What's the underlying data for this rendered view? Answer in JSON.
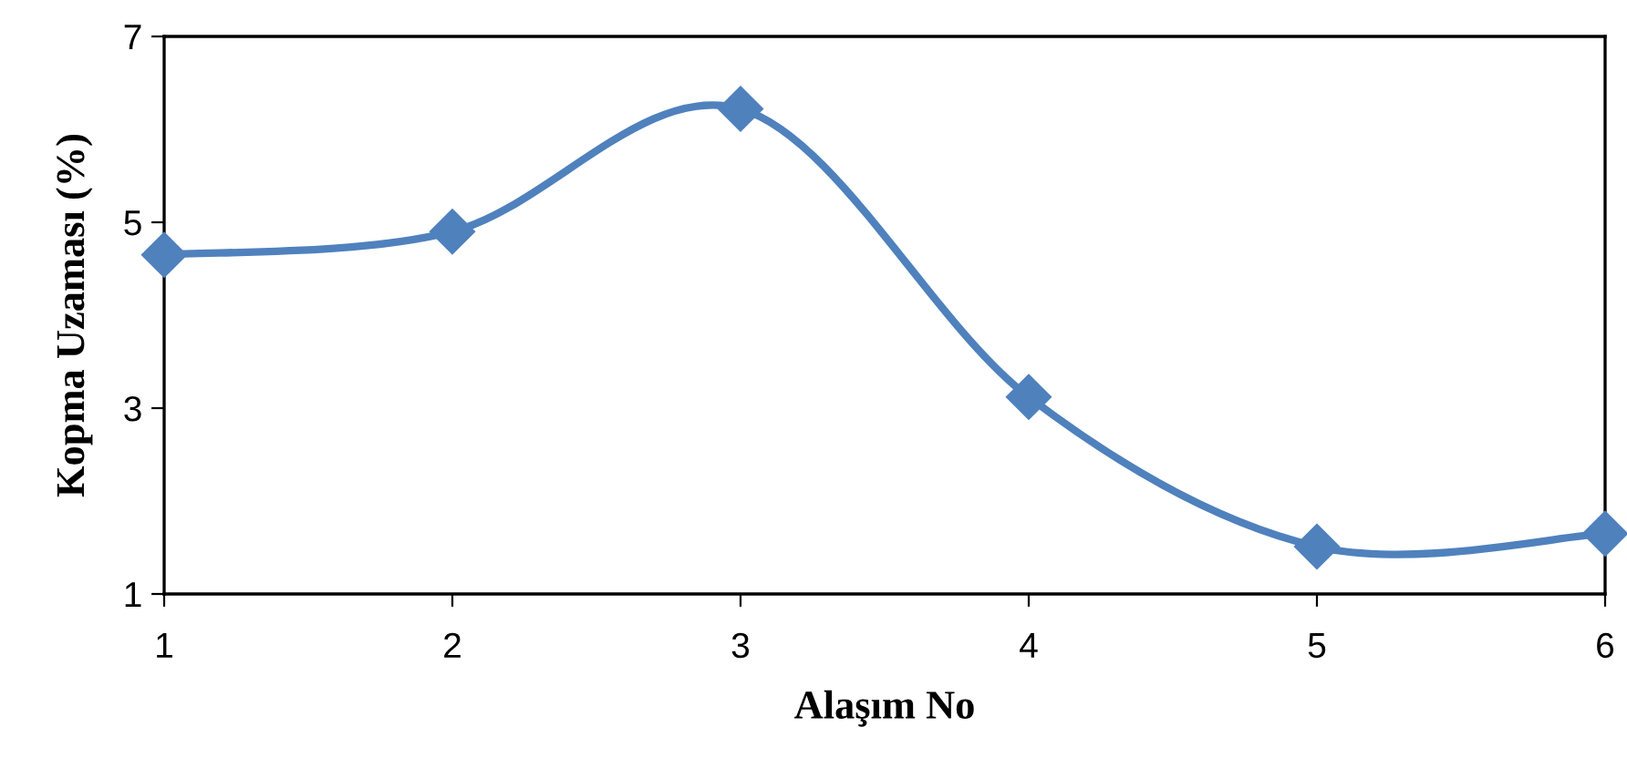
{
  "chart_data": {
    "type": "line",
    "xlabel": "Alaşım No",
    "ylabel": "Kopma Uzaması (%)",
    "x": [
      1,
      2,
      3,
      4,
      5,
      6
    ],
    "series": [
      {
        "color": "#4f81bd",
        "values": [
          4.65,
          4.9,
          6.22,
          3.12,
          1.51,
          1.65
        ]
      }
    ],
    "xlim": [
      1,
      6
    ],
    "xticks": [
      1,
      2,
      3,
      4,
      5,
      6
    ],
    "ylim": [
      1,
      7
    ],
    "yticks": [
      1,
      3,
      5,
      7
    ],
    "marker": "diamond",
    "line_style": "solid",
    "grid": false,
    "legend": false
  }
}
